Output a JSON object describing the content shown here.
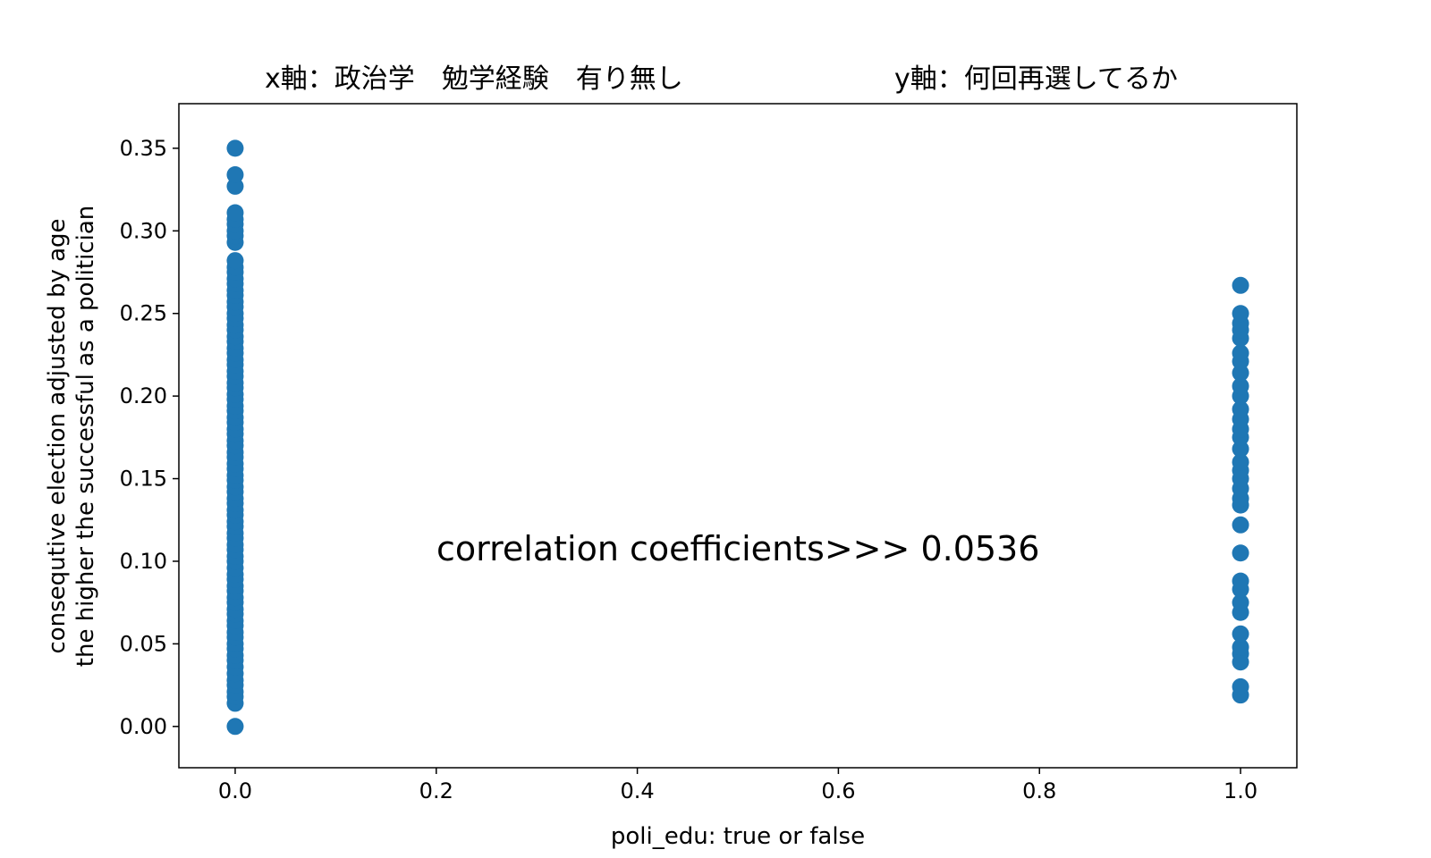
{
  "chart_data": {
    "type": "scatter",
    "title_left": "x軸：政治学　勉学経験　有り無し",
    "title_right": "y軸：何回再選してるか",
    "xlabel": "poli_edu: true or false",
    "ylabel_lines": [
      "consequtive election adjusted by age",
      "the higher the successful as a politician"
    ],
    "annotation": "correlation coefficients>>> 0.0536",
    "xlim": [
      -0.056,
      1.056
    ],
    "ylim": [
      -0.025,
      0.377
    ],
    "x_ticks": [
      "0.0",
      "0.2",
      "0.4",
      "0.6",
      "0.8",
      "1.0"
    ],
    "y_ticks": [
      "0.00",
      "0.05",
      "0.10",
      "0.15",
      "0.20",
      "0.25",
      "0.30",
      "0.35"
    ],
    "grid": false,
    "marker_color": "#1f77b4",
    "series": [
      {
        "x_value": 0,
        "y": [
          0.0,
          0.014,
          0.018,
          0.021,
          0.025,
          0.028,
          0.032,
          0.036,
          0.04,
          0.043,
          0.047,
          0.05,
          0.054,
          0.057,
          0.061,
          0.064,
          0.068,
          0.071,
          0.075,
          0.078,
          0.082,
          0.085,
          0.089,
          0.092,
          0.096,
          0.1,
          0.103,
          0.107,
          0.11,
          0.114,
          0.117,
          0.121,
          0.124,
          0.128,
          0.131,
          0.135,
          0.138,
          0.142,
          0.145,
          0.149,
          0.152,
          0.156,
          0.159,
          0.163,
          0.166,
          0.17,
          0.173,
          0.177,
          0.18,
          0.184,
          0.187,
          0.191,
          0.194,
          0.198,
          0.201,
          0.205,
          0.208,
          0.212,
          0.215,
          0.219,
          0.222,
          0.226,
          0.229,
          0.233,
          0.236,
          0.24,
          0.243,
          0.247,
          0.25,
          0.254,
          0.257,
          0.261,
          0.264,
          0.268,
          0.271,
          0.275,
          0.278,
          0.282,
          0.293,
          0.297,
          0.3,
          0.304,
          0.307,
          0.311,
          0.327,
          0.334,
          0.35
        ]
      },
      {
        "x_value": 1,
        "y": [
          0.019,
          0.024,
          0.039,
          0.044,
          0.048,
          0.056,
          0.069,
          0.075,
          0.083,
          0.088,
          0.105,
          0.122,
          0.134,
          0.138,
          0.144,
          0.15,
          0.155,
          0.16,
          0.168,
          0.175,
          0.18,
          0.186,
          0.192,
          0.2,
          0.206,
          0.214,
          0.221,
          0.226,
          0.235,
          0.24,
          0.244,
          0.25,
          0.267
        ]
      }
    ]
  }
}
